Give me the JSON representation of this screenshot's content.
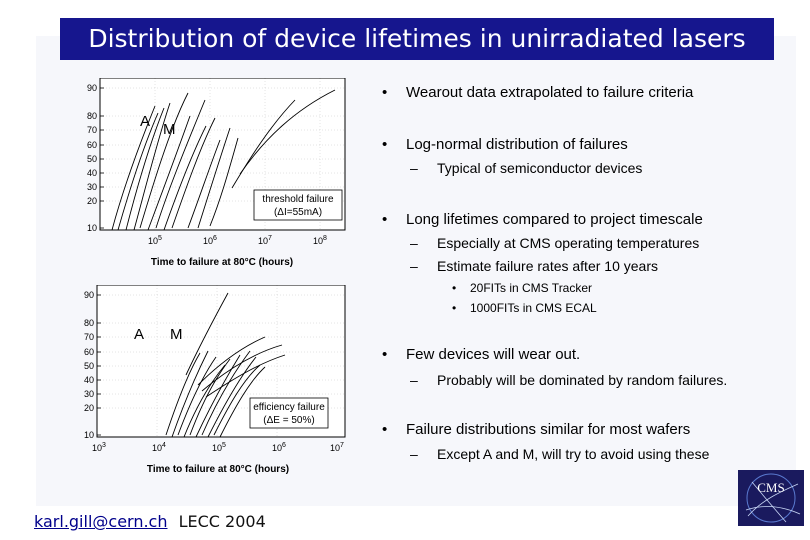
{
  "slide": {
    "title": "Distribution of device lifetimes in unirradiated lasers",
    "colors": {
      "title_bar": "#16168e",
      "logo_bg": "#1a1a5e"
    }
  },
  "chart_top": {
    "label_a": "A",
    "label_m": "M",
    "y_ticks": [
      "90",
      "80",
      "70",
      "60",
      "50",
      "40",
      "30",
      "20",
      "10"
    ],
    "x_ticks": [
      {
        "base": "10",
        "exp": "5"
      },
      {
        "base": "10",
        "exp": "6"
      },
      {
        "base": "10",
        "exp": "7"
      },
      {
        "base": "10",
        "exp": "8"
      }
    ],
    "xlabel": "Time to failure at 80°C (hours)",
    "legend_line1": "threshold failure",
    "legend_line2": "(ΔI=55mA)"
  },
  "chart_bottom": {
    "label_a": "A",
    "label_m": "M",
    "y_ticks": [
      "90",
      "80",
      "70",
      "60",
      "50",
      "40",
      "30",
      "20",
      "10"
    ],
    "x_ticks": [
      {
        "base": "10",
        "exp": "3"
      },
      {
        "base": "10",
        "exp": "4"
      },
      {
        "base": "10",
        "exp": "5"
      },
      {
        "base": "10",
        "exp": "6"
      },
      {
        "base": "10",
        "exp": "7"
      }
    ],
    "xlabel": "Time to failure at 80°C (hours)",
    "legend_line1": "efficiency failure",
    "legend_line2": "(ΔE = 50%)"
  },
  "bullets": {
    "b1": "Wearout data extrapolated to failure criteria",
    "b2": "Log-normal distribution of failures",
    "b2_s1": "Typical of semiconductor devices",
    "b3": "Long lifetimes compared to project timescale",
    "b3_s1": "Especially at CMS operating temperatures",
    "b3_s2": "Estimate failure rates after 10 years",
    "b3_t1": "20FITs in CMS Tracker",
    "b3_t2": "1000FITs in CMS ECAL",
    "b4": "Few devices will wear out.",
    "b4_s1": "Probably will be dominated by random failures.",
    "b5": "Failure distributions similar for most wafers",
    "b5_s1": "Except A and M, will try to avoid using these",
    "marker": "•",
    "dash": "–"
  },
  "footer": {
    "email": "karl.gill@cern.ch",
    "event": "LECC 2004"
  },
  "logo": {
    "text": "CMS"
  }
}
